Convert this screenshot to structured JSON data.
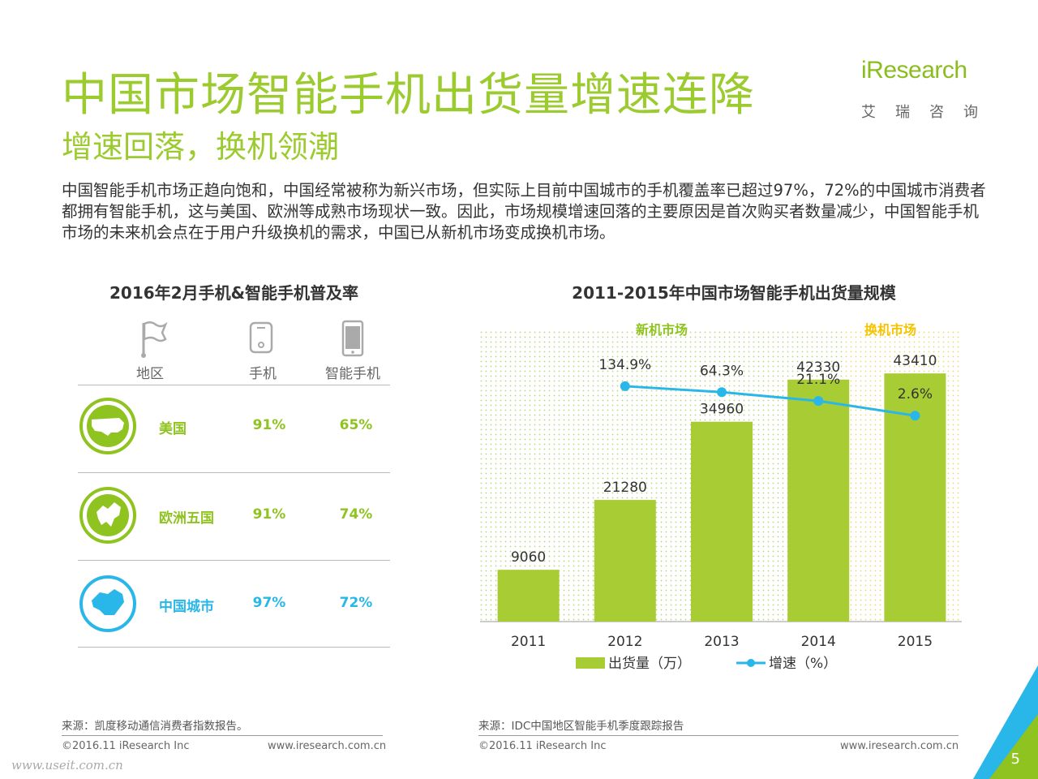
{
  "header": {
    "title": "中国市场智能手机出货量增速连降",
    "subtitle": "增速回落，换机领潮",
    "logo_text": "iResearch",
    "logo_sub": "艾瑞咨询"
  },
  "intro": "中国智能手机市场正趋向饱和，中国经常被称为新兴市场，但实际上目前中国城市的手机覆盖率已超过97%，72%的中国城市消费者都拥有智能手机，这与美国、欧洲等成熟市场现状一致。因此，市场规模增速回落的主要原因是首次购买者数量减少，中国智能手机市场的未来机会点在于用户升级换机的需求，中国已从新机市场变成换机市场。",
  "left_panel": {
    "title": "2016年2月手机&智能手机普及率",
    "columns": [
      "地区",
      "手机",
      "智能手机"
    ],
    "column_icons": [
      "flag-icon",
      "phone-icon",
      "smartphone-icon"
    ],
    "rows": [
      {
        "region": "美国",
        "phone": "91%",
        "smartphone": "65%",
        "color": "#8fc31f",
        "icon": "usa-map-icon"
      },
      {
        "region": "欧洲五国",
        "phone": "91%",
        "smartphone": "74%",
        "color": "#8fc31f",
        "icon": "europe-map-icon"
      },
      {
        "region": "中国城市",
        "phone": "97%",
        "smartphone": "72%",
        "color": "#29b6e8",
        "icon": "china-map-icon"
      }
    ],
    "source": "来源：凯度移动通信消费者指数报告。",
    "copyright": "©2016.11 iResearch Inc",
    "website": "www.iresearch.com.cn"
  },
  "chart_data": {
    "type": "bar",
    "title": "2011-2015年中国市场智能手机出货量规模",
    "categories": [
      "2011",
      "2012",
      "2013",
      "2014",
      "2015"
    ],
    "series": [
      {
        "name": "出货量（万）",
        "type": "bar",
        "values": [
          9060,
          21280,
          34960,
          42330,
          43410
        ],
        "color": "#a8cc34"
      },
      {
        "name": "增速（%）",
        "type": "line",
        "values": [
          null,
          134.9,
          64.3,
          21.1,
          2.6
        ],
        "labels": [
          "",
          "134.9%",
          "64.3%",
          "21.1%",
          "2.6%"
        ],
        "color": "#29b6e8"
      }
    ],
    "ylim": [
      0,
      50000
    ],
    "annotations": [
      {
        "text": "新机市场",
        "color": "#8fc31f"
      },
      {
        "text": "换机市场",
        "color": "#f5c400"
      }
    ],
    "legend": "bottom",
    "source": "来源：IDC中国地区智能手机季度跟踪报告",
    "copyright": "©2016.11 iResearch Inc",
    "website": "www.iresearch.com.cn"
  },
  "footer": {
    "page_number": "5",
    "watermark": "www.useit.com.cn"
  }
}
